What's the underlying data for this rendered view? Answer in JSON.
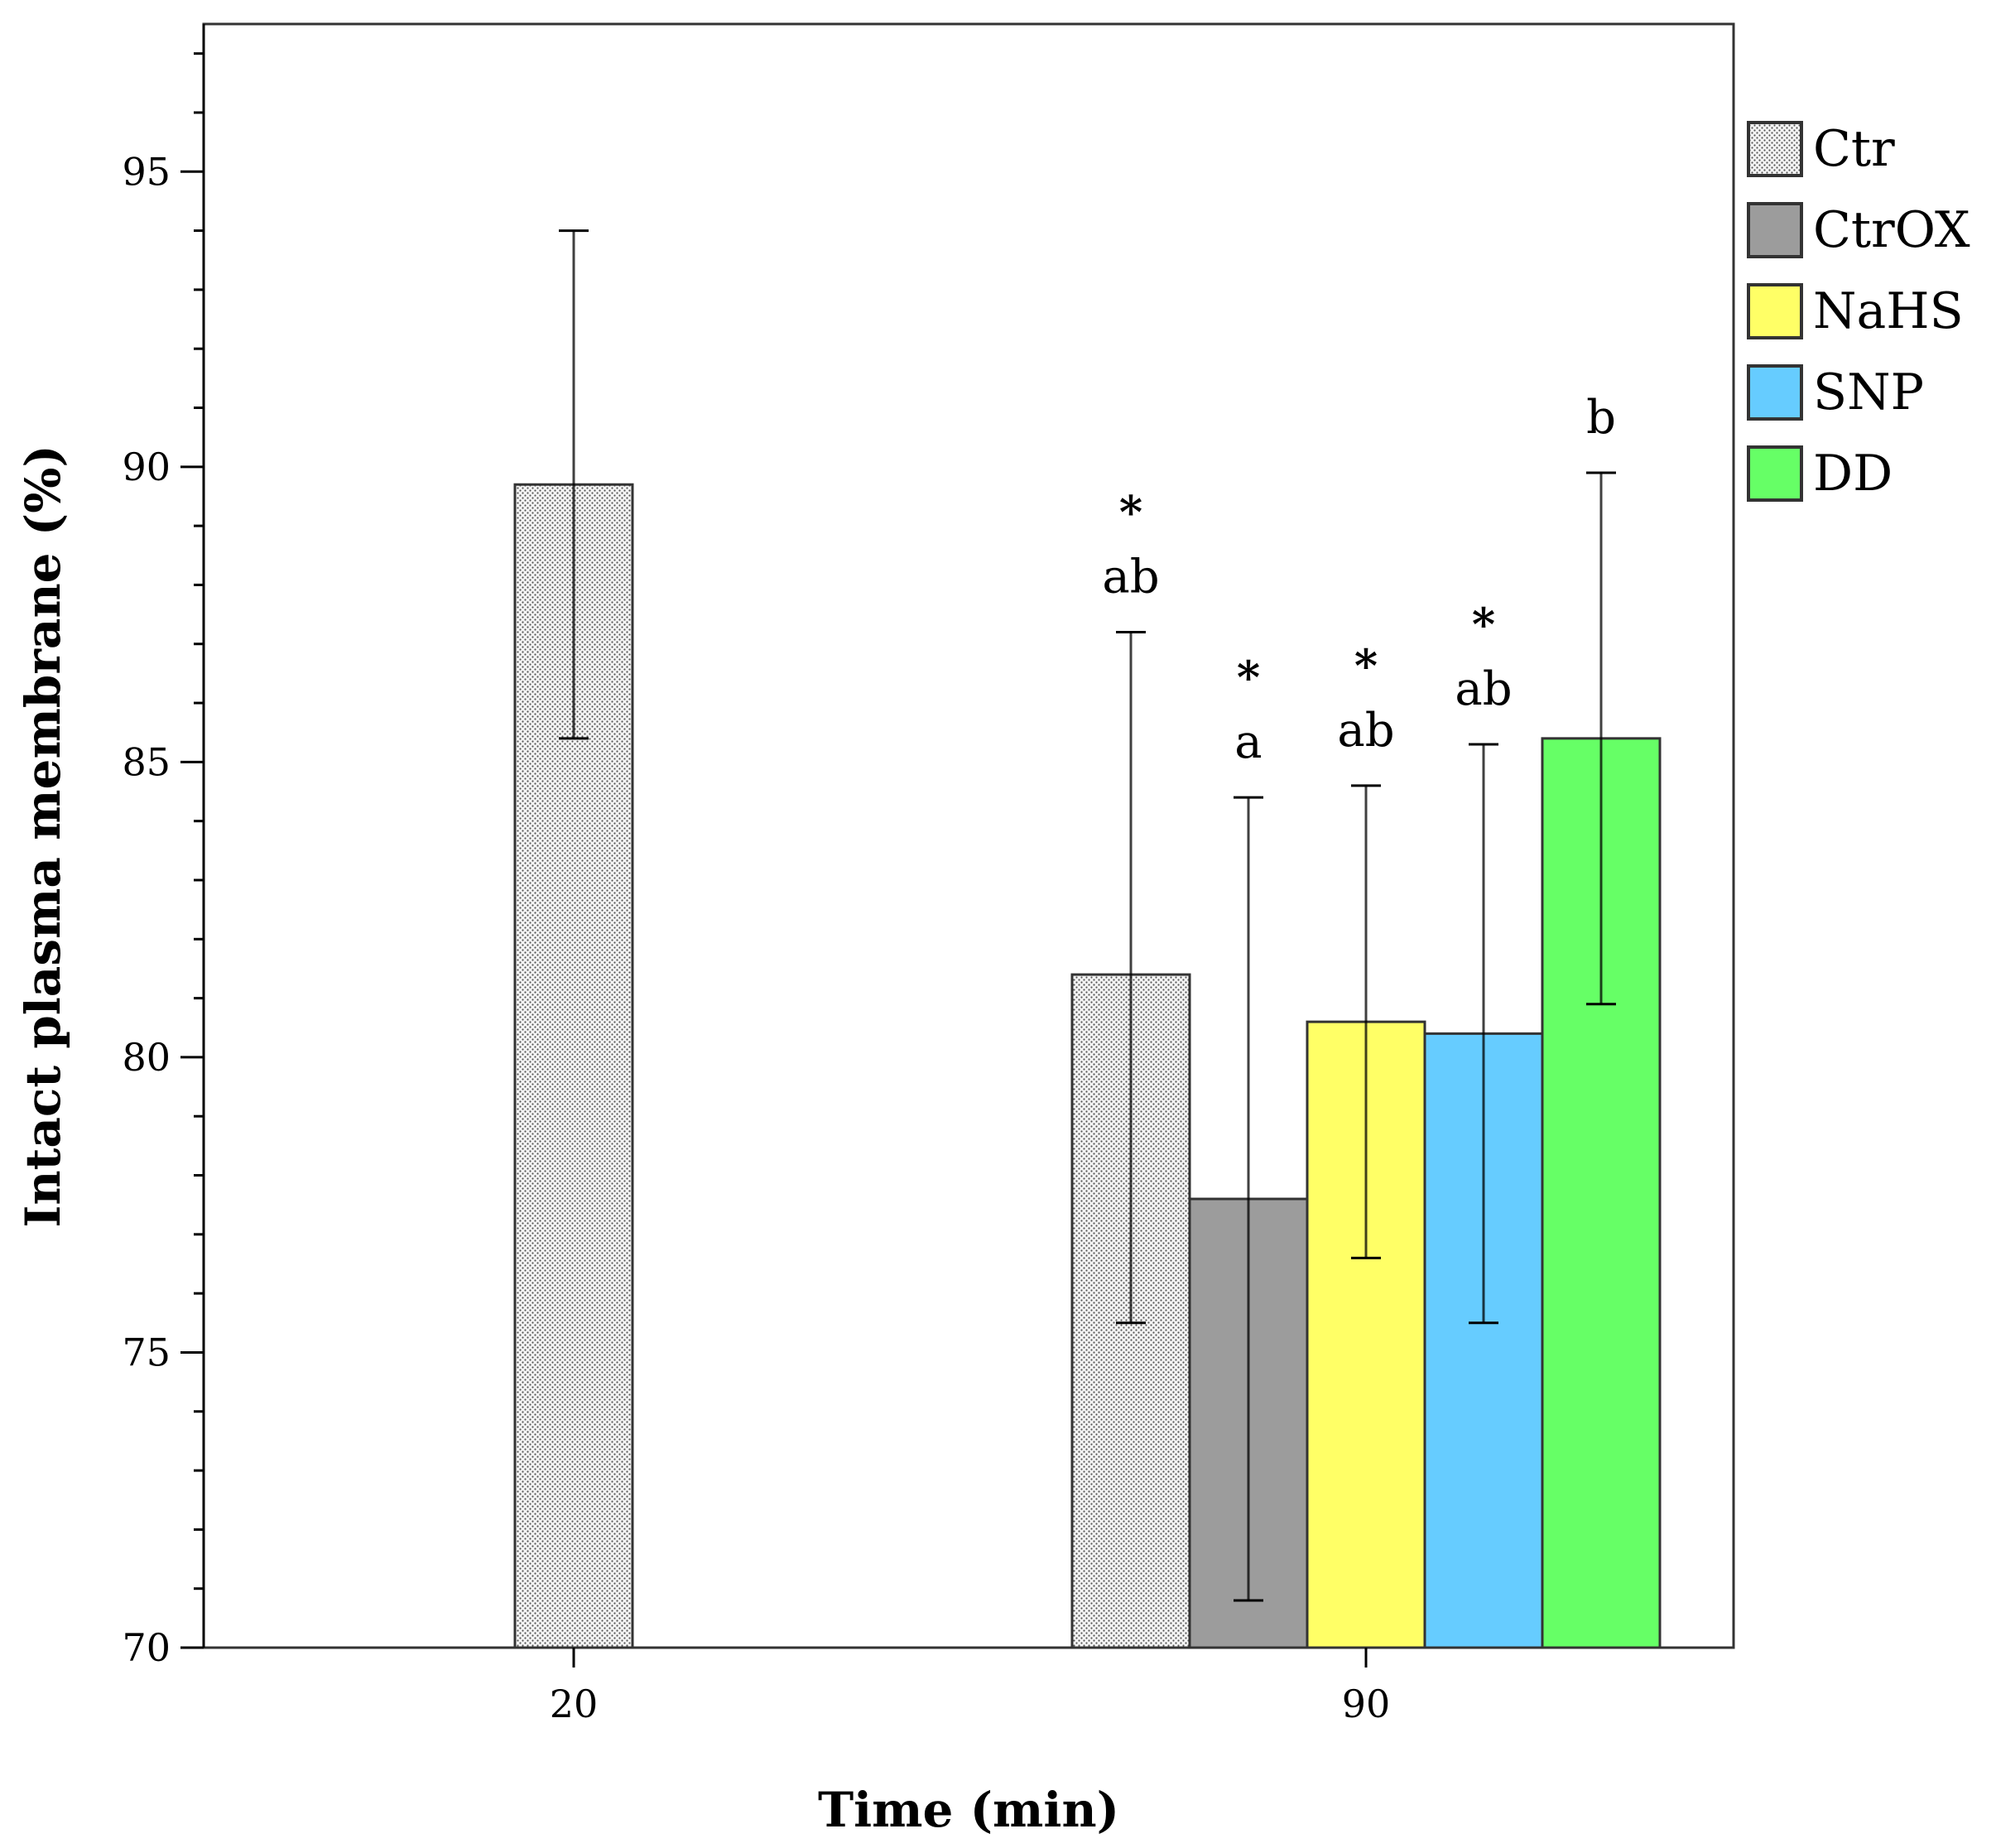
{
  "chart_data": {
    "type": "bar",
    "title": "",
    "xlabel": "Time (min)",
    "ylabel": "Intact plasma membrane (%)",
    "ylim": [
      70,
      97.5
    ],
    "yticks": [
      70,
      75,
      80,
      85,
      90,
      95
    ],
    "yticks_labels": [
      "70",
      "75",
      "80",
      "85",
      "90",
      "95"
    ],
    "categories": [
      "20",
      "90"
    ],
    "legend": {
      "position": "top-right",
      "entries": [
        "Ctr",
        "CtrOX",
        "NaHS",
        "SNP",
        "DD"
      ]
    },
    "series": [
      {
        "name": "Ctr",
        "color": "#e8e8e8",
        "pattern": "dotted",
        "values": [
          89.7,
          81.4
        ],
        "err_low": [
          85.4,
          75.5
        ],
        "err_high": [
          94.0,
          87.2
        ],
        "letters": [
          "",
          "ab"
        ],
        "stars": [
          "",
          "*"
        ]
      },
      {
        "name": "CtrOX",
        "color": "#9c9c9c",
        "values": [
          null,
          77.6
        ],
        "err_low": [
          null,
          70.8
        ],
        "err_high": [
          null,
          84.4
        ],
        "letters": [
          "",
          "a"
        ],
        "stars": [
          "",
          "*"
        ]
      },
      {
        "name": "NaHS",
        "color": "#ffff66",
        "values": [
          null,
          80.6
        ],
        "err_low": [
          null,
          76.6
        ],
        "err_high": [
          null,
          84.6
        ],
        "letters": [
          "",
          "ab"
        ],
        "stars": [
          "",
          "*"
        ]
      },
      {
        "name": "SNP",
        "color": "#66ccff",
        "values": [
          null,
          80.4
        ],
        "err_low": [
          null,
          75.5
        ],
        "err_high": [
          null,
          85.3
        ],
        "letters": [
          "",
          "ab"
        ],
        "stars": [
          "",
          "*"
        ]
      },
      {
        "name": "DD",
        "color": "#66ff66",
        "values": [
          null,
          85.4
        ],
        "err_low": [
          null,
          80.9
        ],
        "err_high": [
          null,
          89.9
        ],
        "letters": [
          "",
          "b"
        ],
        "stars": [
          "",
          ""
        ]
      }
    ]
  }
}
